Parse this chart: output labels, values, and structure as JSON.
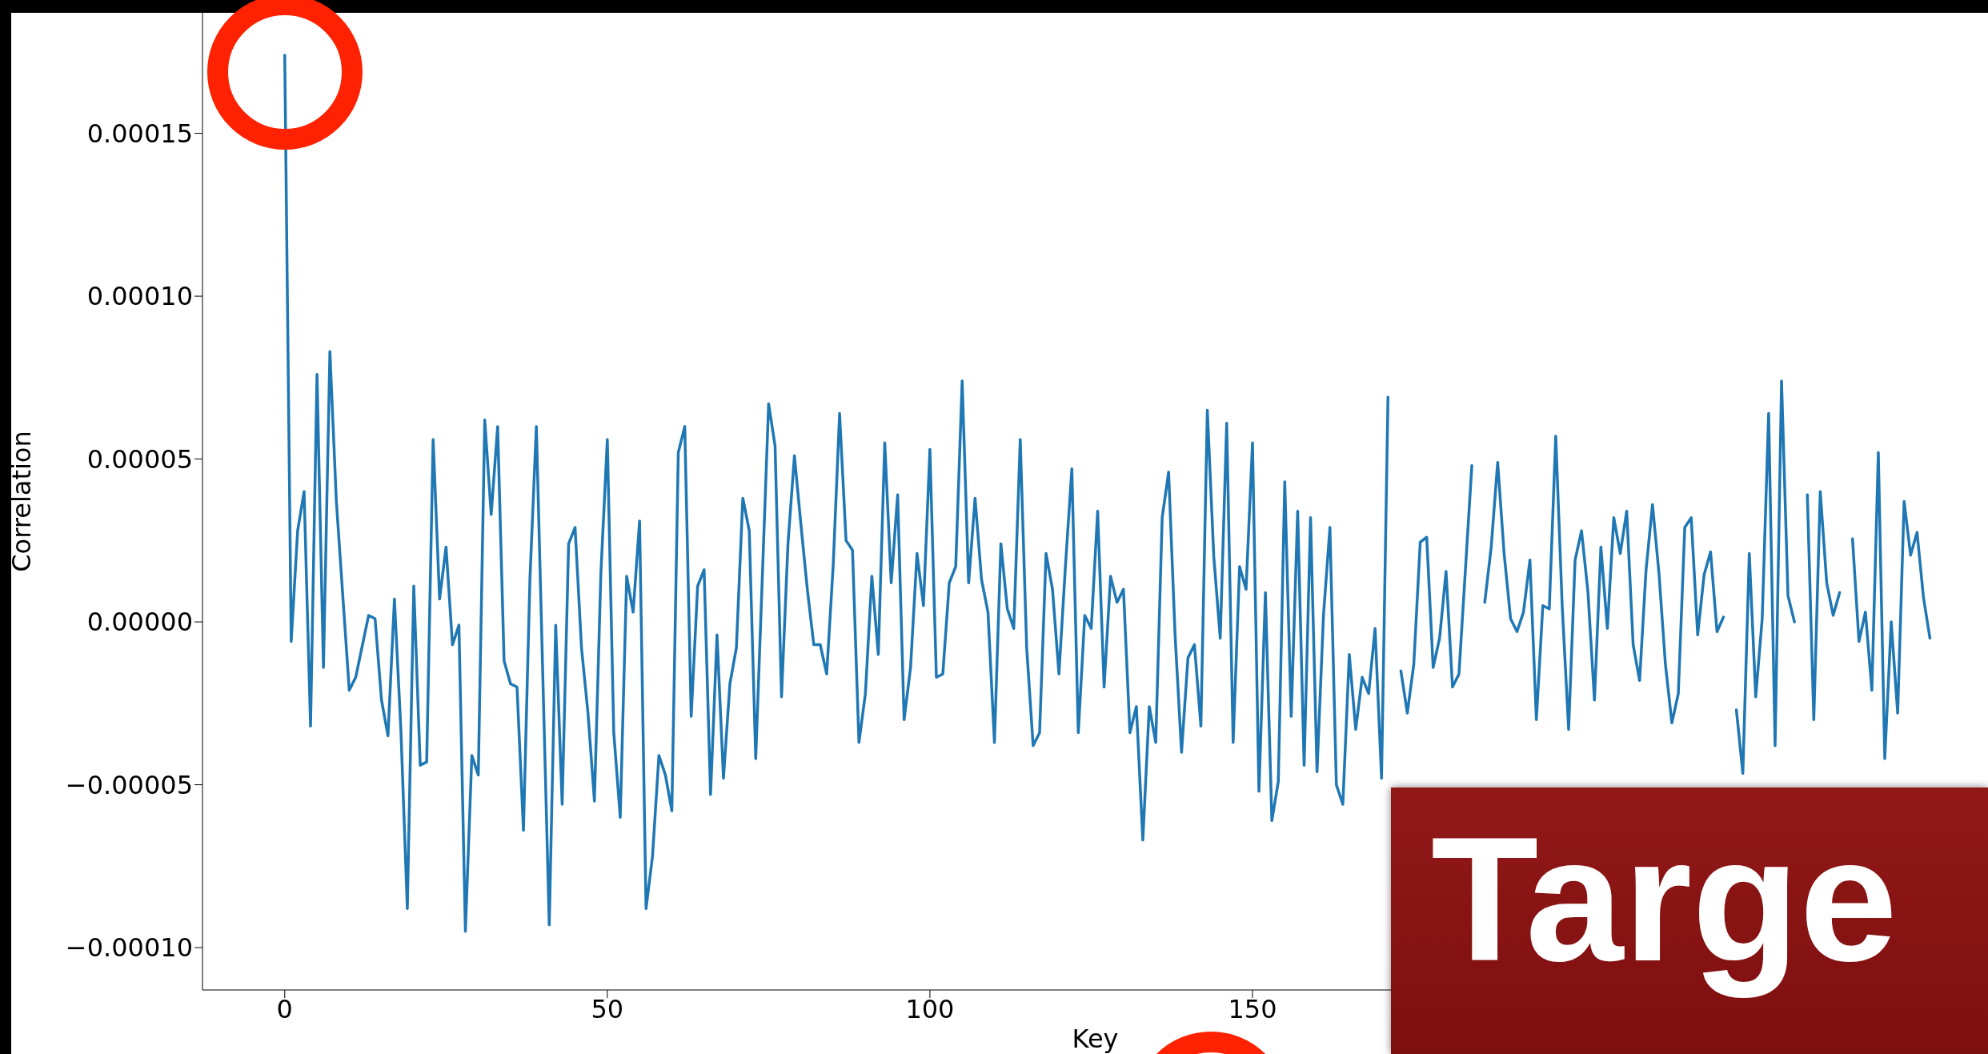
{
  "chart_data": {
    "type": "line",
    "xlabel": "Key",
    "ylabel": "Correlation",
    "annotations": [
      "Targe"
    ],
    "x": [
      0,
      1,
      2,
      3,
      4,
      5,
      6,
      7,
      8,
      9,
      10,
      11,
      12,
      13,
      14,
      15,
      16,
      17,
      18,
      19,
      20,
      21,
      22,
      23,
      24,
      25,
      26,
      27,
      28,
      29,
      30,
      31,
      32,
      33,
      34,
      35,
      36,
      37,
      38,
      39,
      40,
      41,
      42,
      43,
      44,
      45,
      46,
      47,
      48,
      49,
      50,
      51,
      52,
      53,
      54,
      55,
      56,
      57,
      58,
      59,
      60,
      61,
      62,
      63,
      64,
      65,
      66,
      67,
      68,
      69,
      70,
      71,
      72,
      73,
      74,
      75,
      76,
      77,
      78,
      79,
      80,
      81,
      82,
      83,
      84,
      85,
      86,
      87,
      88,
      89,
      90,
      91,
      92,
      93,
      94,
      95,
      96,
      97,
      98,
      99,
      100,
      101,
      102,
      103,
      104,
      105,
      106,
      107,
      108,
      109,
      110,
      111,
      112,
      113,
      114,
      115,
      116,
      117,
      118,
      119,
      120,
      121,
      122,
      123,
      124,
      125,
      126,
      127,
      128,
      129,
      130,
      131,
      132,
      133,
      134,
      135,
      136,
      137,
      138,
      139,
      140,
      141,
      142,
      143,
      144,
      145,
      146,
      147,
      148,
      149,
      150,
      151,
      152,
      153,
      154,
      155,
      156,
      157,
      158,
      159,
      160,
      161,
      162,
      163,
      164,
      165,
      166,
      167,
      168,
      169,
      170,
      171,
      172,
      173,
      174,
      175,
      176,
      177,
      178,
      179,
      180,
      181,
      182,
      183,
      184,
      185,
      186,
      187,
      188,
      189,
      190,
      191,
      192,
      193,
      194,
      195,
      196,
      197,
      198,
      199,
      200,
      201,
      202,
      203,
      204,
      205,
      206,
      207,
      208,
      209,
      210,
      211,
      212,
      213,
      214,
      215,
      216,
      217,
      218,
      219,
      220,
      221,
      222,
      223,
      224,
      225,
      226,
      227,
      228,
      229,
      230,
      231,
      232,
      233,
      234,
      235,
      236,
      237,
      238,
      239,
      240,
      241,
      242,
      243,
      244,
      245,
      246,
      247,
      248,
      249,
      250,
      251,
      252,
      253,
      254,
      255
    ],
    "series": [
      {
        "color": "#1f77b4",
        "values": [
          0.000174,
          -6e-06,
          2.8e-05,
          4e-05,
          -3.2e-05,
          7.6e-05,
          -1.4e-05,
          8.3e-05,
          3.7e-05,
          8e-06,
          -2.1e-05,
          -1.7e-05,
          -7.5e-06,
          2e-06,
          1e-06,
          -2.4e-05,
          -3.5e-05,
          7e-06,
          -3.3e-05,
          -8.8e-05,
          1.1e-05,
          -4.4e-05,
          -4.3e-05,
          5.6e-05,
          7e-06,
          2.3e-05,
          -7e-06,
          -1e-06,
          -9.5e-05,
          -4.1e-05,
          -4.7e-05,
          6.2e-05,
          3.3e-05,
          6e-05,
          -1.2e-05,
          -1.9e-05,
          -2e-05,
          -6.4e-05,
          1.3e-05,
          6e-05,
          -1.65e-05,
          -9.3e-05,
          -1e-06,
          -5.6e-05,
          2.4e-05,
          2.9e-05,
          -8e-06,
          -2.8e-05,
          -5.5e-05,
          1.5e-05,
          5.6e-05,
          -3.4e-05,
          -6e-05,
          1.4e-05,
          3e-06,
          3.1e-05,
          -8.8e-05,
          -7.2e-05,
          -4.1e-05,
          -4.7e-05,
          -5.8e-05,
          5.2e-05,
          6e-05,
          -2.9e-05,
          1.1e-05,
          1.6e-05,
          -5.3e-05,
          -4e-06,
          -4.8e-05,
          -1.9e-05,
          -8e-06,
          3.8e-05,
          2.8e-05,
          -4.2e-05,
          1.25e-05,
          6.7e-05,
          5.4e-05,
          -2.3e-05,
          2.4e-05,
          5.1e-05,
          3e-05,
          1e-05,
          -7e-06,
          -7e-06,
          -1.6e-05,
          1.7e-05,
          6.4e-05,
          2.5e-05,
          2.2e-05,
          -3.7e-05,
          -2.2e-05,
          1.4e-05,
          -1e-05,
          5.5e-05,
          1.2e-05,
          3.9e-05,
          -3e-05,
          -1.4e-05,
          2.1e-05,
          5e-06,
          5.3e-05,
          -1.7e-05,
          -1.6e-05,
          1.2e-05,
          1.7e-05,
          7.4e-05,
          1.2e-05,
          3.8e-05,
          1.3e-05,
          3e-06,
          -3.7e-05,
          2.4e-05,
          4e-06,
          -2e-06,
          5.6e-05,
          -8e-06,
          -3.8e-05,
          -3.4e-05,
          2.1e-05,
          1e-05,
          -1.6e-05,
          1.7e-05,
          4.7e-05,
          -3.4e-05,
          2e-06,
          -2e-06,
          3.4e-05,
          -2e-05,
          1.4e-05,
          6e-06,
          1e-05,
          -3.4e-05,
          -2.6e-05,
          -6.7e-05,
          -2.6e-05,
          -3.7e-05,
          3.2e-05,
          4.6e-05,
          -4e-06,
          -4e-05,
          -1.1e-05,
          -7e-06,
          -3.2e-05,
          6.5e-05,
          2e-05,
          -5e-06,
          6.1e-05,
          -3.7e-05,
          1.7e-05,
          1e-05,
          5.5e-05,
          -5.2e-05,
          9e-06,
          -6.1e-05,
          -4.9e-05,
          4.3e-05,
          -2.9e-05,
          3.4e-05,
          -4.4e-05,
          3.2e-05,
          -4.6e-05,
          2e-06,
          2.9e-05,
          -5e-05,
          -5.6e-05,
          -1e-05,
          -3.3e-05,
          -1.7e-05,
          -2.2e-05,
          -2e-06,
          -4.8e-05,
          6.9e-05,
          null,
          -1.5e-05,
          -2.8e-05,
          -1.3e-05,
          2.45e-05,
          2.6e-05,
          -1.4e-05,
          -5e-06,
          1.55e-05,
          -2e-05,
          -1.6e-05,
          1.6e-05,
          4.8e-05,
          null,
          6e-06,
          2.3e-05,
          4.9e-05,
          2.1e-05,
          1e-06,
          -3e-06,
          3e-06,
          1.9e-05,
          -3e-05,
          5e-06,
          4e-06,
          5.7e-05,
          5e-06,
          -3.3e-05,
          1.9e-05,
          2.8e-05,
          9e-06,
          -2.4e-05,
          2.3e-05,
          -2e-06,
          3.2e-05,
          2.1e-05,
          3.4e-05,
          -7e-06,
          -1.8e-05,
          1.6e-05,
          3.6e-05,
          1.5e-05,
          -1.3e-05,
          -3.1e-05,
          -2.2e-05,
          2.9e-05,
          3.2e-05,
          -4e-06,
          1.45e-05,
          2.15e-05,
          -3e-06,
          1.5e-06,
          null,
          -2.7e-05,
          -4.65e-05,
          2.1e-05,
          -2.3e-05,
          1e-06,
          6.4e-05,
          -3.8e-05,
          7.4e-05,
          8e-06,
          0.0,
          null,
          3.9e-05,
          -3e-05,
          4e-05,
          1.2e-05,
          2e-06,
          9e-06,
          null,
          2.55e-05,
          -6e-06,
          3e-06,
          -2.1e-05,
          5.2e-05,
          -4.2e-05,
          0.0,
          -2.8e-05,
          3.7e-05,
          2.05e-05,
          2.75e-05,
          7.5e-06,
          -5e-06
        ]
      }
    ],
    "xlim": [
      -12.75,
      264
    ],
    "xticks": [
      0,
      50,
      100,
      150
    ],
    "ylim": [
      -0.000113,
      0.000187
    ],
    "yticks": [
      {
        "value": -0.0001,
        "label": "−0.00010"
      },
      {
        "value": -5e-05,
        "label": "−0.00005"
      },
      {
        "value": 0,
        "label": "0.00000"
      },
      {
        "value": 5e-05,
        "label": "0.00005"
      },
      {
        "value": 0.0001,
        "label": "0.00010"
      },
      {
        "value": 0.00015,
        "label": "0.00015"
      }
    ]
  }
}
